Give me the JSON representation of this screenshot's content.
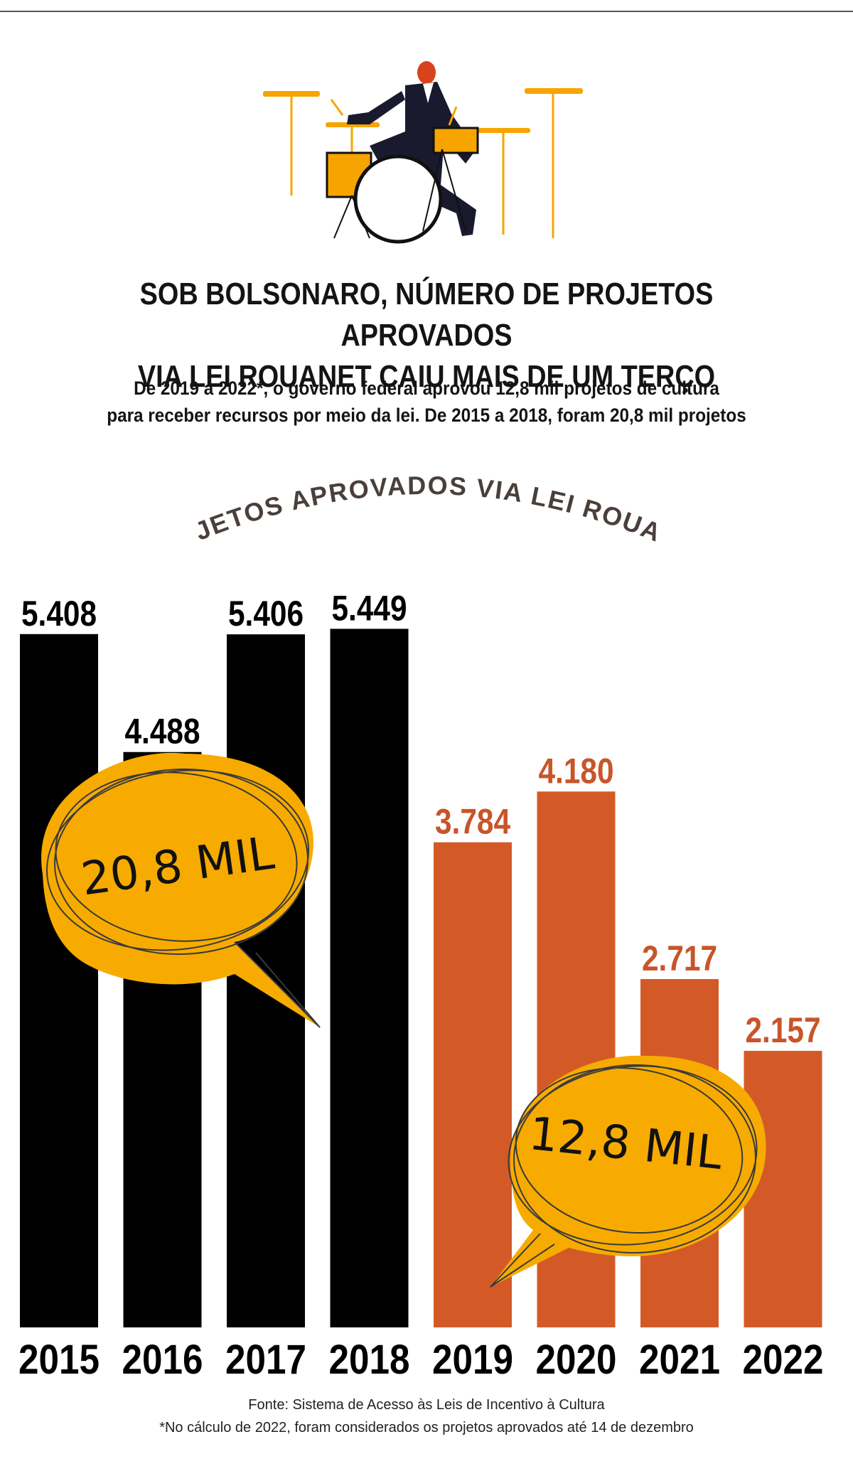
{
  "header": {
    "title_line1": "SOB BOLSONARO, NÚMERO DE PROJETOS APROVADOS",
    "title_line2": "VIA LEI ROUANET CAIU MAIS DE UM TERÇO",
    "subtitle_line1": "De 2019 a 2022*, o governo federal aprovou 12,8 mil projetos de cultura",
    "subtitle_line2": "para receber recursos por meio da lei. De 2015 a 2018, foram 20,8 mil projetos"
  },
  "colors": {
    "before": "#000000",
    "after": "#d35a27",
    "bubble": "#f7ab00",
    "label_after": "#c8552a",
    "scribble": "#3a3a3a"
  },
  "chart_data": {
    "type": "bar",
    "title": "PROJETOS APROVADOS VIA LEI ROUANET",
    "categories": [
      "2015",
      "2016",
      "2017",
      "2018",
      "2019",
      "2020",
      "2021",
      "2022"
    ],
    "values": [
      5408,
      4488,
      5406,
      5449,
      3784,
      4180,
      2717,
      2157
    ],
    "value_labels": [
      "5.408",
      "4.488",
      "5.406",
      "5.449",
      "3.784",
      "4.180",
      "2.717",
      "2.157"
    ],
    "groups": [
      "before",
      "before",
      "before",
      "before",
      "after",
      "after",
      "after",
      "after"
    ],
    "annotations": [
      {
        "text": "20,8 MIL",
        "covers": [
          "2015",
          "2016",
          "2017",
          "2018"
        ]
      },
      {
        "text": "12,8 MIL",
        "covers": [
          "2019",
          "2020",
          "2021",
          "2022"
        ]
      }
    ],
    "ylim": [
      0,
      6000
    ],
    "grid": false,
    "legend": "none"
  },
  "footer": {
    "source": "Fonte: Sistema de Acesso às Leis de Incentivo à Cultura",
    "note": "*No cálculo de 2022, foram considerados os projetos aprovados até 14 de dezembro"
  }
}
